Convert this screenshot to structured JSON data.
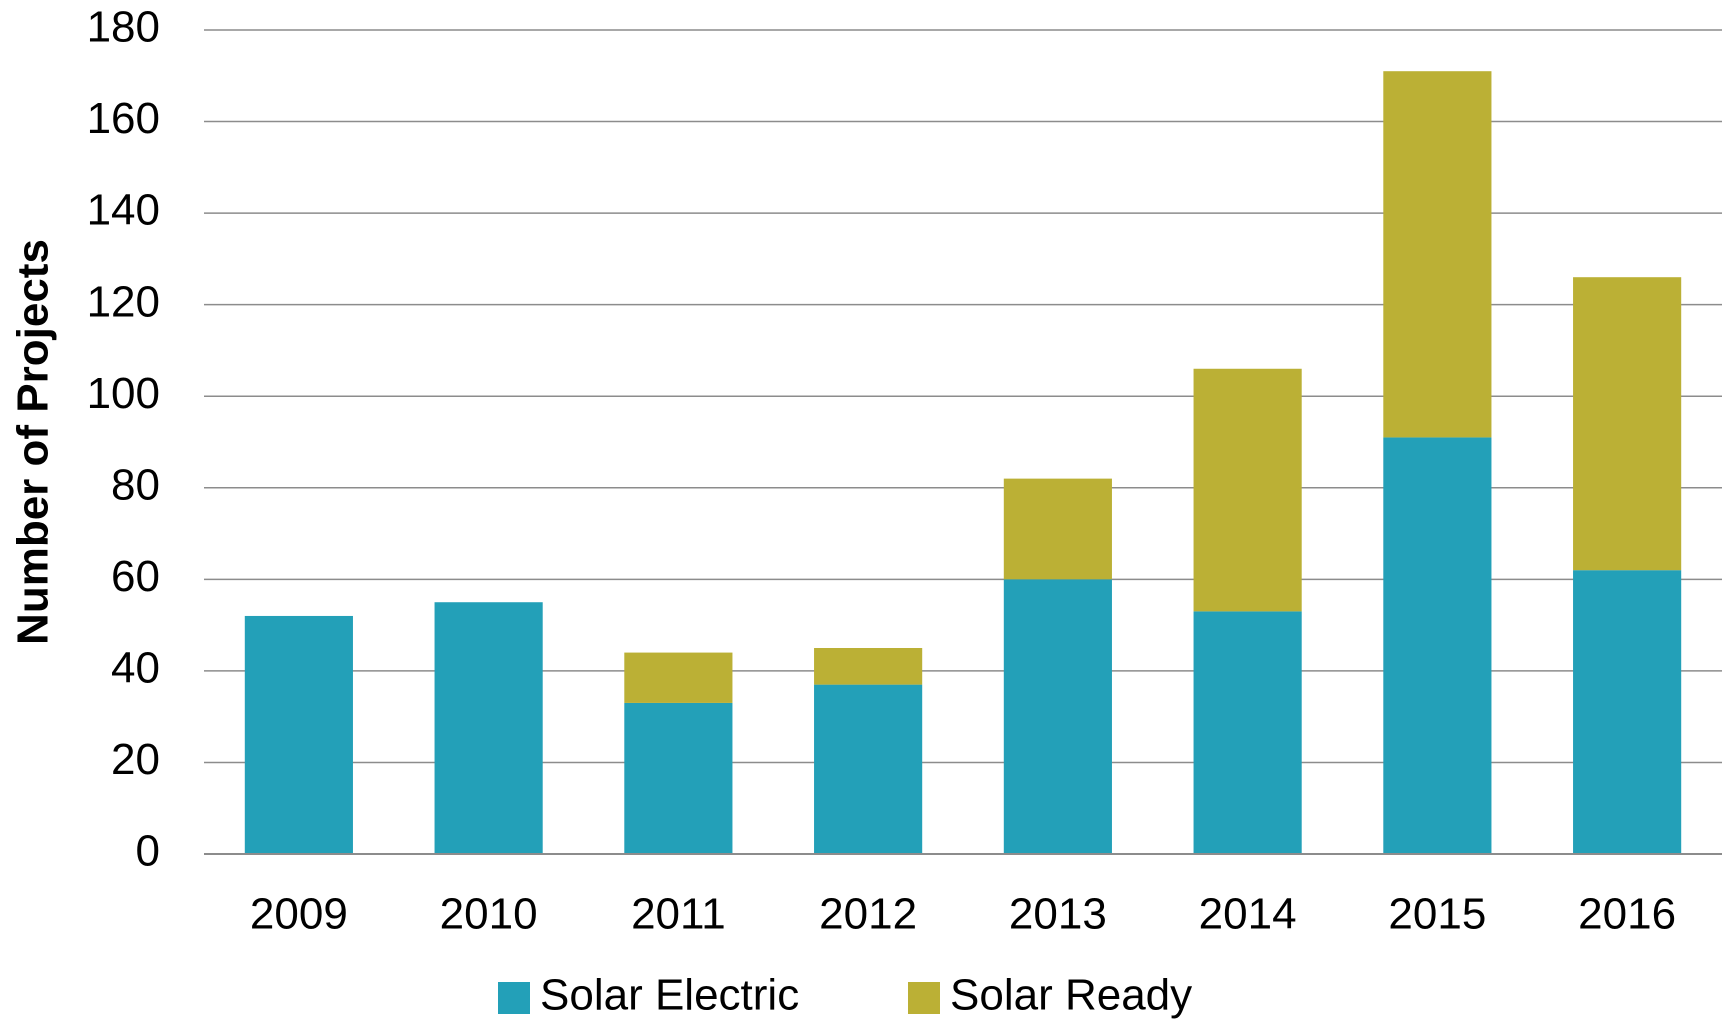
{
  "chart_data": {
    "type": "stacked_bar",
    "ylabel": "Number of Projects",
    "categories": [
      "2009",
      "2010",
      "2011",
      "2012",
      "2013",
      "2014",
      "2015",
      "2016"
    ],
    "series": [
      {
        "name": "Solar Electric",
        "color": "#23a0b8",
        "values": [
          52,
          55,
          33,
          37,
          60,
          53,
          91,
          62
        ]
      },
      {
        "name": "Solar Ready",
        "color": "#bbb035",
        "values": [
          0,
          0,
          11,
          8,
          22,
          53,
          80,
          64
        ]
      }
    ],
    "ylim": [
      0,
      180
    ],
    "yticks": [
      0,
      20,
      40,
      60,
      80,
      100,
      120,
      140,
      160,
      180
    ],
    "grid": true,
    "legend": "bottom"
  }
}
